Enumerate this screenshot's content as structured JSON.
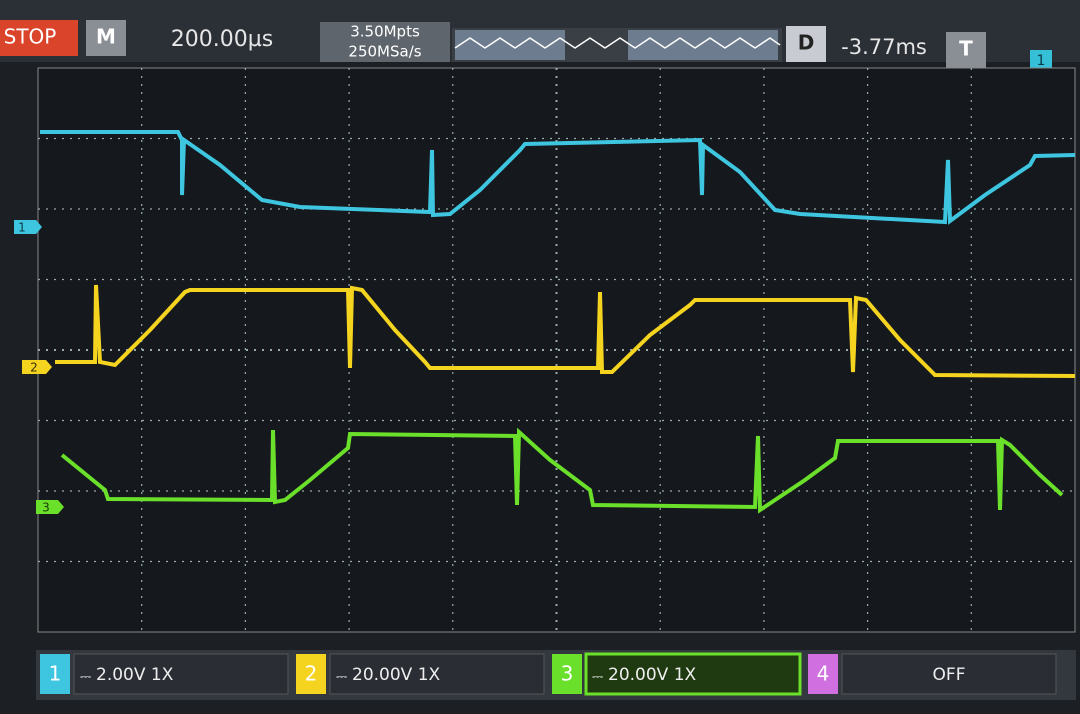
{
  "toolbar": {
    "run_state": "STOP",
    "mode": "M",
    "timebase": "200.00µs",
    "memory_depth": "3.50Mpts",
    "sample_rate": "250MSa/s",
    "delay_label": "D",
    "delay": "-3.77ms",
    "trigger_label": "T",
    "trigger_channel": "1"
  },
  "markers": [
    "1",
    "2",
    "3"
  ],
  "channels": [
    {
      "number": "1",
      "setting": "2.00V 1X"
    },
    {
      "number": "2",
      "setting": "20.00V 1X"
    },
    {
      "number": "3",
      "setting": "20.00V 1X"
    },
    {
      "number": "4",
      "setting": "OFF"
    }
  ]
}
